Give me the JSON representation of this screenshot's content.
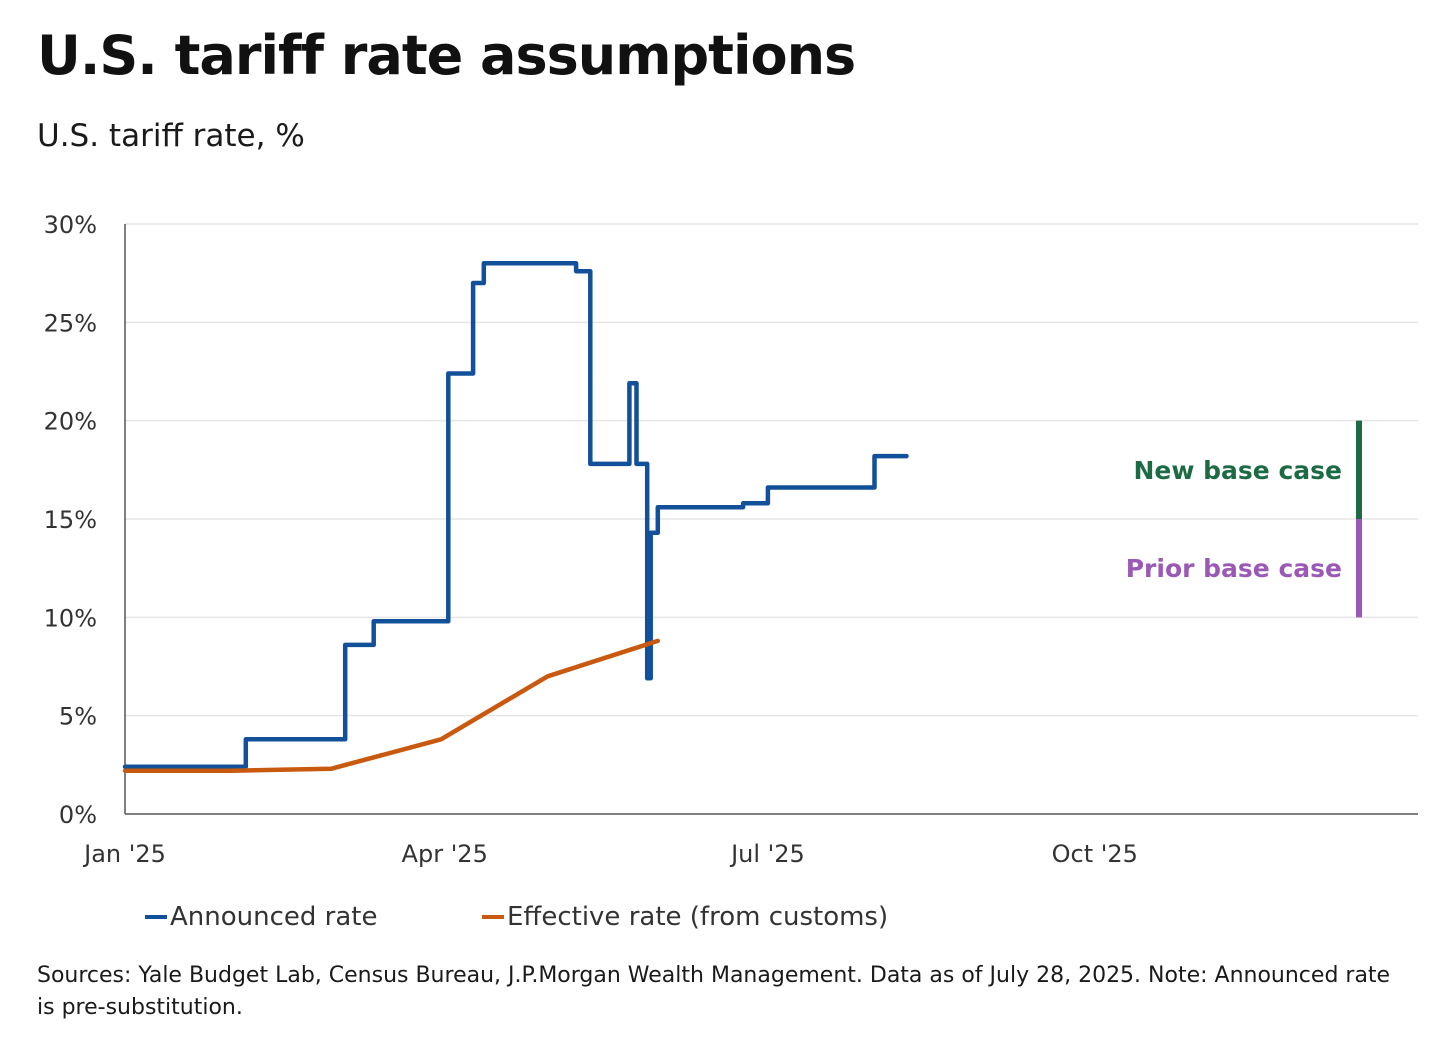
{
  "title": "U.S. tariff rate assumptions",
  "subtitle": "U.S. tariff rate, %",
  "colors": {
    "announced": "#12509A",
    "effective": "#C8590F",
    "new_base": "#1C6B45",
    "prior_base": "#9B59B6",
    "grid": "#E6E6E6",
    "axis": "#555555"
  },
  "chart_data": {
    "type": "line",
    "title": "U.S. tariff rate assumptions",
    "ylabel": "U.S. tariff rate, %",
    "xlabel": "",
    "ylim": [
      0,
      30
    ],
    "xlim": [
      "2025-01-01",
      "2025-12-31"
    ],
    "yticks": [
      0,
      5,
      10,
      15,
      20,
      25,
      30
    ],
    "ytick_labels": [
      "0%",
      "5%",
      "10%",
      "15%",
      "20%",
      "25%",
      "30%"
    ],
    "xticks": [
      {
        "date": "2025-01-01",
        "label": "Jan '25"
      },
      {
        "date": "2025-04-01",
        "label": "Apr '25"
      },
      {
        "date": "2025-07-01",
        "label": "Jul '25"
      },
      {
        "date": "2025-10-01",
        "label": "Oct '25"
      }
    ],
    "grid": true,
    "series": [
      {
        "name": "Announced rate",
        "color": "#12509A",
        "step": true,
        "points": [
          [
            "2025-01-01",
            2.4
          ],
          [
            "2025-02-04",
            3.8
          ],
          [
            "2025-03-04",
            8.6
          ],
          [
            "2025-03-12",
            9.8
          ],
          [
            "2025-04-02",
            22.4
          ],
          [
            "2025-04-09",
            27.0
          ],
          [
            "2025-04-12",
            28.0
          ],
          [
            "2025-05-08",
            27.6
          ],
          [
            "2025-05-12",
            17.8
          ],
          [
            "2025-05-23",
            21.9
          ],
          [
            "2025-05-25",
            17.8
          ],
          [
            "2025-05-28",
            6.9
          ],
          [
            "2025-05-29",
            14.3
          ],
          [
            "2025-05-31",
            15.6
          ],
          [
            "2025-06-24",
            15.8
          ],
          [
            "2025-07-01",
            16.6
          ],
          [
            "2025-07-31",
            18.2
          ],
          [
            "2025-08-09",
            18.2
          ]
        ]
      },
      {
        "name": "Effective rate (from customs)",
        "color": "#C8590F",
        "step": false,
        "points": [
          [
            "2025-01-01",
            2.2
          ],
          [
            "2025-01-31",
            2.2
          ],
          [
            "2025-02-28",
            2.3
          ],
          [
            "2025-03-31",
            3.8
          ],
          [
            "2025-04-30",
            7.0
          ],
          [
            "2025-05-31",
            8.8
          ]
        ]
      }
    ],
    "annotations": [
      {
        "label": "New base case",
        "from": 15,
        "to": 20,
        "color": "#1C6B45"
      },
      {
        "label": "Prior base case",
        "from": 10,
        "to": 15,
        "color": "#9B59B6"
      }
    ]
  },
  "legend": {
    "announced": "Announced rate",
    "effective": "Effective rate (from customs)"
  },
  "source_note": "Sources: Yale Budget Lab, Census Bureau, J.P.Morgan Wealth Management. Data as of July 28, 2025. Note: Announced rate is pre-substitution."
}
